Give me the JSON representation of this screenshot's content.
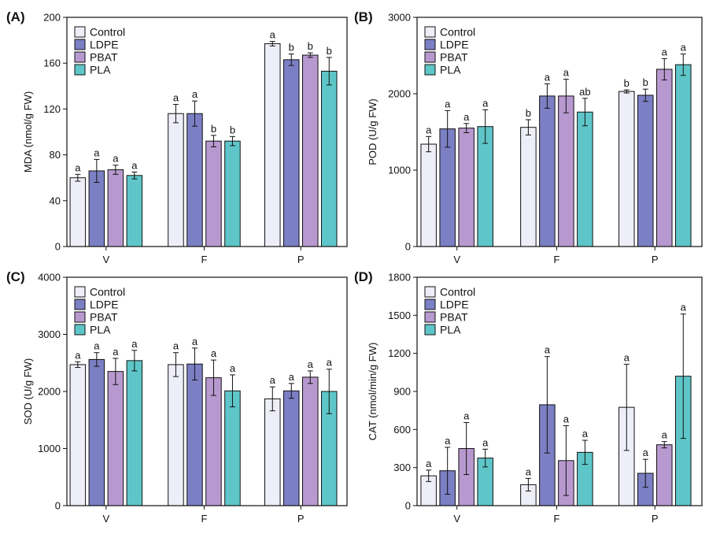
{
  "figure": {
    "legend_labels": [
      "Control",
      "LDPE",
      "PBAT",
      "PLA"
    ],
    "colors": {
      "Control": "#eeeef8",
      "LDPE": "#7b7fc4",
      "PBAT": "#b899cf",
      "PLA": "#5ec6c8"
    }
  },
  "chart_data": [
    {
      "panel": "(A)",
      "type": "bar",
      "ylabel": "MDA (nmol/g FW)",
      "ylim": [
        0,
        200
      ],
      "yticks": [
        0,
        40,
        80,
        120,
        160,
        200
      ],
      "categories": [
        "V",
        "F",
        "P"
      ],
      "legend_position": "top-left",
      "series": [
        {
          "name": "Control",
          "values": [
            60,
            116,
            177
          ],
          "errors": [
            3,
            8,
            2
          ],
          "letters": [
            "a",
            "a",
            "a"
          ]
        },
        {
          "name": "LDPE",
          "values": [
            66,
            116,
            163
          ],
          "errors": [
            10,
            11,
            5
          ],
          "letters": [
            "a",
            "a",
            "b"
          ]
        },
        {
          "name": "PBAT",
          "values": [
            67,
            92,
            167
          ],
          "errors": [
            4,
            5,
            2
          ],
          "letters": [
            "a",
            "b",
            "b"
          ]
        },
        {
          "name": "PLA",
          "values": [
            62,
            92,
            153
          ],
          "errors": [
            3,
            4,
            12
          ],
          "letters": [
            "a",
            "b",
            "b"
          ]
        }
      ]
    },
    {
      "panel": "(B)",
      "type": "bar",
      "ylabel": "POD (U/g FW)",
      "ylim": [
        0,
        3000
      ],
      "yticks": [
        0,
        1000,
        2000,
        3000
      ],
      "categories": [
        "V",
        "F",
        "P"
      ],
      "legend_position": "top-left",
      "series": [
        {
          "name": "Control",
          "values": [
            1340,
            1560,
            2030
          ],
          "errors": [
            100,
            100,
            20
          ],
          "letters": [
            "a",
            "b",
            "b"
          ]
        },
        {
          "name": "LDPE",
          "values": [
            1540,
            1970,
            1980
          ],
          "errors": [
            240,
            160,
            80
          ],
          "letters": [
            "a",
            "a",
            "b"
          ]
        },
        {
          "name": "PBAT",
          "values": [
            1550,
            1970,
            2320
          ],
          "errors": [
            60,
            220,
            140
          ],
          "letters": [
            "a",
            "a",
            "a"
          ]
        },
        {
          "name": "PLA",
          "values": [
            1570,
            1760,
            2380
          ],
          "errors": [
            220,
            180,
            140
          ],
          "letters": [
            "a",
            "ab",
            "a"
          ]
        }
      ]
    },
    {
      "panel": "(C)",
      "type": "bar",
      "ylabel": "SOD (U/g FW)",
      "ylim": [
        0,
        4000
      ],
      "yticks": [
        0,
        1000,
        2000,
        3000,
        4000
      ],
      "categories": [
        "V",
        "F",
        "P"
      ],
      "legend_position": "top-left",
      "series": [
        {
          "name": "Control",
          "values": [
            2470,
            2470,
            1870
          ],
          "errors": [
            50,
            210,
            210
          ],
          "letters": [
            "a",
            "a",
            "a"
          ]
        },
        {
          "name": "LDPE",
          "values": [
            2560,
            2480,
            2010
          ],
          "errors": [
            120,
            280,
            130
          ],
          "letters": [
            "a",
            "a",
            "a"
          ]
        },
        {
          "name": "PBAT",
          "values": [
            2350,
            2240,
            2250
          ],
          "errors": [
            230,
            310,
            110
          ],
          "letters": [
            "a",
            "a",
            "a"
          ]
        },
        {
          "name": "PLA",
          "values": [
            2540,
            2010,
            2000
          ],
          "errors": [
            180,
            280,
            390
          ],
          "letters": [
            "a",
            "a",
            "a"
          ]
        }
      ]
    },
    {
      "panel": "(D)",
      "type": "bar",
      "ylabel": "CAT (nmol/min/g FW)",
      "ylim": [
        0,
        1800
      ],
      "yticks": [
        0,
        300,
        600,
        900,
        1200,
        1500,
        1800
      ],
      "categories": [
        "V",
        "F",
        "P"
      ],
      "legend_position": "top-left",
      "series": [
        {
          "name": "Control",
          "values": [
            235,
            165,
            775
          ],
          "errors": [
            45,
            50,
            340
          ],
          "letters": [
            "a",
            "a",
            "a"
          ]
        },
        {
          "name": "LDPE",
          "values": [
            275,
            795,
            255
          ],
          "errors": [
            185,
            380,
            110
          ],
          "letters": [
            "a",
            "a",
            "a"
          ]
        },
        {
          "name": "PBAT",
          "values": [
            450,
            355,
            480
          ],
          "errors": [
            205,
            275,
            25
          ],
          "letters": [
            "a",
            "a",
            "a"
          ]
        },
        {
          "name": "PLA",
          "values": [
            375,
            420,
            1020
          ],
          "errors": [
            70,
            95,
            490
          ],
          "letters": [
            "a",
            "a",
            "a"
          ]
        }
      ]
    }
  ]
}
